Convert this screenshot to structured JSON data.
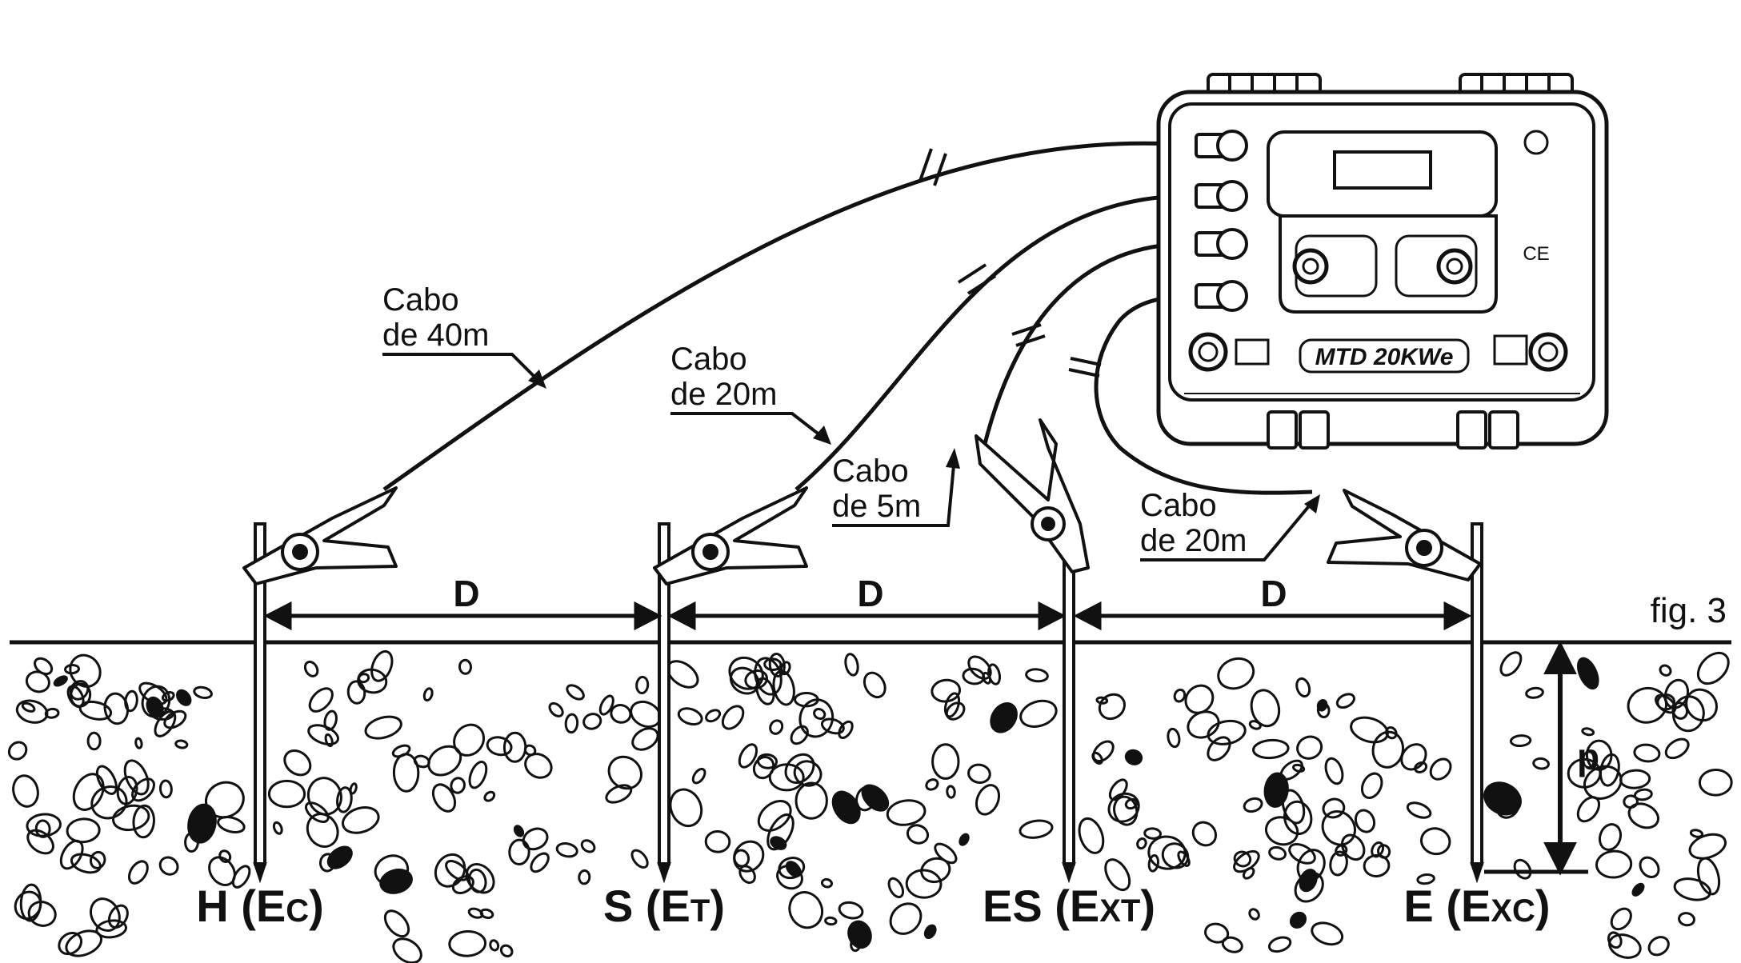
{
  "figure_label": "fig. 3",
  "distance_label": "D",
  "depth_label": "p",
  "cables": [
    {
      "line1": "Cabo",
      "line2": "de 40m"
    },
    {
      "line1": "Cabo",
      "line2": "de 20m"
    },
    {
      "line1": "Cabo",
      "line2": "de 5m"
    },
    {
      "line1": "Cabo",
      "line2": "de 20m"
    }
  ],
  "electrodes": [
    {
      "main": "H (E",
      "sub": "C",
      "close": ")"
    },
    {
      "main": "S (E",
      "sub": "T",
      "close": ")"
    },
    {
      "main": "ES (E",
      "sub": "XT",
      "close": ")"
    },
    {
      "main": "E (E",
      "sub": "XC",
      "close": ")"
    }
  ],
  "instrument": {
    "model": "MTD 20KWe",
    "ce_mark": "CE"
  },
  "colors": {
    "ink": "#111111",
    "paper": "#ffffff"
  }
}
